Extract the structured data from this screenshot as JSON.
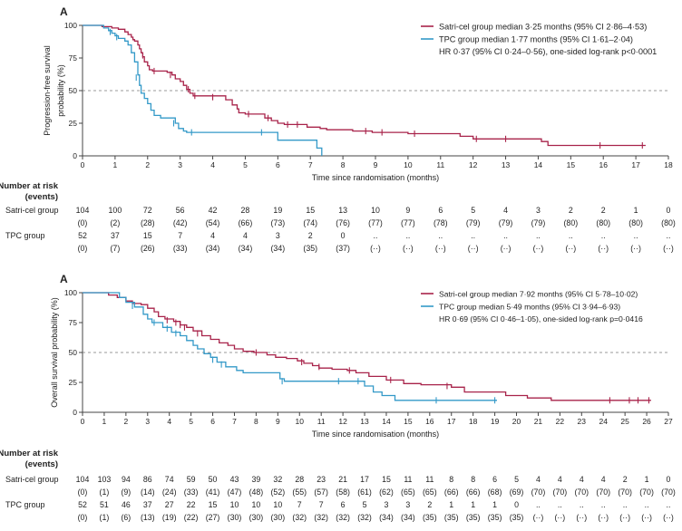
{
  "chart_data": [
    {
      "type": "line",
      "subtype": "kaplan-meier",
      "panel_label": "A",
      "ylabel": "Progression-free survival probability (%)",
      "ylabel_lines": [
        "Progression-free survival",
        "probability (%)"
      ],
      "xlabel": "Time since randomisation (months)",
      "xlim": [
        0,
        18
      ],
      "ylim": [
        0,
        100
      ],
      "x_ticks": [
        0,
        1,
        2,
        3,
        4,
        5,
        6,
        7,
        8,
        9,
        10,
        11,
        12,
        13,
        14,
        15,
        16,
        17,
        18
      ],
      "y_ticks": [
        0,
        25,
        50,
        75,
        100
      ],
      "reference_line": 50,
      "annotation": "HR 0·37 (95% CI 0·24–0·56), one-sided log-rank p<0·0001",
      "legend_position": "top-right",
      "series": [
        {
          "name": "Satri-cel group median 3·25 months (95% CI 2·86–4·53)",
          "color": "#a8234a",
          "steps": [
            [
              0,
              100
            ],
            [
              0.6,
              99
            ],
            [
              0.9,
              98
            ],
            [
              1.1,
              97
            ],
            [
              1.3,
              95
            ],
            [
              1.4,
              93
            ],
            [
              1.5,
              91
            ],
            [
              1.55,
              89
            ],
            [
              1.6,
              88
            ],
            [
              1.7,
              85
            ],
            [
              1.75,
              82
            ],
            [
              1.8,
              79
            ],
            [
              1.85,
              76
            ],
            [
              1.9,
              72
            ],
            [
              2.0,
              69
            ],
            [
              2.05,
              66
            ],
            [
              2.15,
              65
            ],
            [
              2.6,
              64
            ],
            [
              2.75,
              62
            ],
            [
              2.85,
              59
            ],
            [
              3.0,
              57
            ],
            [
              3.1,
              54
            ],
            [
              3.2,
              51
            ],
            [
              3.3,
              48
            ],
            [
              3.4,
              46
            ],
            [
              4.4,
              43
            ],
            [
              4.6,
              39
            ],
            [
              4.75,
              36
            ],
            [
              4.8,
              33
            ],
            [
              5.0,
              32
            ],
            [
              5.6,
              29
            ],
            [
              5.8,
              27
            ],
            [
              6.0,
              25
            ],
            [
              6.2,
              24
            ],
            [
              6.9,
              22
            ],
            [
              7.3,
              21
            ],
            [
              7.5,
              20
            ],
            [
              8.3,
              19
            ],
            [
              8.9,
              18
            ],
            [
              10.0,
              17
            ],
            [
              11.6,
              15
            ],
            [
              12.0,
              13
            ],
            [
              14.1,
              11
            ],
            [
              14.3,
              8
            ],
            [
              17.3,
              8
            ]
          ],
          "censored": [
            [
              1.85,
              77
            ],
            [
              2.2,
              65
            ],
            [
              2.7,
              62
            ],
            [
              3.25,
              51
            ],
            [
              3.45,
              46
            ],
            [
              4.0,
              45
            ],
            [
              5.1,
              32
            ],
            [
              5.7,
              29
            ],
            [
              6.3,
              24
            ],
            [
              6.6,
              24
            ],
            [
              8.7,
              19
            ],
            [
              9.2,
              18
            ],
            [
              10.2,
              17
            ],
            [
              12.1,
              13
            ],
            [
              13.0,
              13
            ],
            [
              15.9,
              8
            ],
            [
              17.2,
              8
            ]
          ],
          "at_risk": [
            "104",
            "100",
            "72",
            "56",
            "42",
            "28",
            "19",
            "15",
            "13",
            "10",
            "9",
            "6",
            "5",
            "4",
            "3",
            "2",
            "2",
            "1",
            "0"
          ],
          "events": [
            "(0)",
            "(2)",
            "(28)",
            "(42)",
            "(54)",
            "(66)",
            "(73)",
            "(74)",
            "(76)",
            "(77)",
            "(77)",
            "(78)",
            "(79)",
            "(79)",
            "(79)",
            "(80)",
            "(80)",
            "(80)",
            "(80)"
          ]
        },
        {
          "name": "TPC group median 1·77 months (95% CI 1·61–2·04)",
          "color": "#3399c8",
          "steps": [
            [
              0,
              100
            ],
            [
              0.65,
              98
            ],
            [
              0.8,
              96
            ],
            [
              0.9,
              94
            ],
            [
              1.0,
              92
            ],
            [
              1.1,
              90
            ],
            [
              1.3,
              88
            ],
            [
              1.4,
              85
            ],
            [
              1.5,
              79
            ],
            [
              1.6,
              72
            ],
            [
              1.7,
              62
            ],
            [
              1.75,
              54
            ],
            [
              1.8,
              48
            ],
            [
              1.9,
              44
            ],
            [
              2.0,
              40
            ],
            [
              2.1,
              35
            ],
            [
              2.2,
              31
            ],
            [
              2.4,
              29
            ],
            [
              2.85,
              25
            ],
            [
              2.95,
              21
            ],
            [
              3.1,
              19
            ],
            [
              3.2,
              18
            ],
            [
              5.6,
              18
            ],
            [
              6.0,
              12
            ],
            [
              7.2,
              6
            ],
            [
              7.35,
              0
            ]
          ],
          "censored": [
            [
              0.85,
              95
            ],
            [
              1.05,
              91
            ],
            [
              1.65,
              60
            ],
            [
              2.8,
              25
            ],
            [
              3.35,
              18
            ],
            [
              5.5,
              18
            ]
          ],
          "at_risk": [
            "52",
            "37",
            "15",
            "7",
            "4",
            "4",
            "3",
            "2",
            "0",
            "..",
            "..",
            "..",
            "..",
            "..",
            "..",
            "..",
            "..",
            "..",
            ".."
          ],
          "events": [
            "(0)",
            "(7)",
            "(26)",
            "(33)",
            "(34)",
            "(34)",
            "(34)",
            "(35)",
            "(37)",
            "(··)",
            "(··)",
            "(··)",
            "(··)",
            "(··)",
            "(··)",
            "(··)",
            "(··)",
            "(··)",
            "(··)"
          ]
        }
      ],
      "risk_table": {
        "title_line1": "Number at risk",
        "title_line2": "(events)",
        "row_labels": [
          "Satri-cel group",
          "TPC group"
        ]
      }
    },
    {
      "type": "line",
      "subtype": "kaplan-meier",
      "panel_label": "A",
      "ylabel": "Overall survival probability (%)",
      "ylabel_lines": [
        "Overall survival probability (%)"
      ],
      "xlabel": "Time since randomisation (months)",
      "xlim": [
        0,
        27
      ],
      "ylim": [
        0,
        100
      ],
      "x_ticks": [
        0,
        1,
        2,
        3,
        4,
        5,
        6,
        7,
        8,
        9,
        10,
        11,
        12,
        13,
        14,
        15,
        16,
        17,
        18,
        19,
        20,
        21,
        22,
        23,
        24,
        25,
        26,
        27
      ],
      "y_ticks": [
        0,
        25,
        50,
        75,
        100
      ],
      "reference_line": 50,
      "annotation": "HR 0·69 (95% CI 0·46–1·05), one-sided log-rank p=0·0416",
      "legend_position": "top-right",
      "series": [
        {
          "name": "Satri-cel group median 7·92 months (95% CI 5·78–10·02)",
          "color": "#a8234a",
          "steps": [
            [
              0,
              100
            ],
            [
              1.2,
              98
            ],
            [
              1.6,
              96
            ],
            [
              2.0,
              93
            ],
            [
              2.3,
              91
            ],
            [
              2.7,
              90
            ],
            [
              3.0,
              87
            ],
            [
              3.3,
              84
            ],
            [
              3.5,
              80
            ],
            [
              3.8,
              78
            ],
            [
              4.2,
              76
            ],
            [
              4.5,
              73
            ],
            [
              4.8,
              71
            ],
            [
              5.1,
              68
            ],
            [
              5.5,
              64
            ],
            [
              5.9,
              61
            ],
            [
              6.3,
              58
            ],
            [
              6.7,
              56
            ],
            [
              7.0,
              53
            ],
            [
              7.4,
              51
            ],
            [
              7.9,
              50
            ],
            [
              8.5,
              48
            ],
            [
              8.9,
              46
            ],
            [
              9.4,
              45
            ],
            [
              9.9,
              43
            ],
            [
              10.2,
              41
            ],
            [
              10.6,
              39
            ],
            [
              10.9,
              37
            ],
            [
              11.5,
              36
            ],
            [
              12.2,
              35
            ],
            [
              12.6,
              33
            ],
            [
              13.2,
              30
            ],
            [
              14.0,
              27
            ],
            [
              14.8,
              24
            ],
            [
              15.6,
              23
            ],
            [
              17.0,
              21
            ],
            [
              17.6,
              17
            ],
            [
              19.5,
              14
            ],
            [
              20.5,
              12
            ],
            [
              21.6,
              10
            ],
            [
              26.2,
              10
            ]
          ],
          "censored": [
            [
              3.9,
              77
            ],
            [
              4.3,
              75
            ],
            [
              4.5,
              73
            ],
            [
              4.7,
              71
            ],
            [
              5.3,
              66
            ],
            [
              8.0,
              50
            ],
            [
              10.1,
              42
            ],
            [
              10.9,
              38
            ],
            [
              12.3,
              35
            ],
            [
              14.2,
              27
            ],
            [
              16.8,
              22
            ],
            [
              24.3,
              10
            ],
            [
              25.2,
              10
            ],
            [
              25.6,
              10
            ],
            [
              26.1,
              10
            ]
          ],
          "at_risk": [
            "104",
            "103",
            "94",
            "86",
            "74",
            "59",
            "50",
            "43",
            "39",
            "32",
            "28",
            "23",
            "21",
            "17",
            "15",
            "11",
            "11",
            "8",
            "8",
            "6",
            "5",
            "4",
            "4",
            "4",
            "4",
            "2",
            "1",
            "0"
          ],
          "events": [
            "(0)",
            "(1)",
            "(9)",
            "(14)",
            "(24)",
            "(33)",
            "(41)",
            "(47)",
            "(48)",
            "(52)",
            "(55)",
            "(57)",
            "(58)",
            "(61)",
            "(62)",
            "(65)",
            "(65)",
            "(66)",
            "(66)",
            "(68)",
            "(69)",
            "(70)",
            "(70)",
            "(70)",
            "(70)",
            "(70)",
            "(70)",
            "(70)"
          ]
        },
        {
          "name": "TPC group median 5·49 months (95% CI 3·94–6·93)",
          "color": "#3399c8",
          "steps": [
            [
              0,
              100
            ],
            [
              1.7,
              96
            ],
            [
              2.0,
              92
            ],
            [
              2.4,
              88
            ],
            [
              2.8,
              82
            ],
            [
              3.0,
              78
            ],
            [
              3.2,
              75
            ],
            [
              3.7,
              71
            ],
            [
              4.1,
              67
            ],
            [
              4.5,
              64
            ],
            [
              4.8,
              60
            ],
            [
              5.1,
              56
            ],
            [
              5.3,
              53
            ],
            [
              5.6,
              49
            ],
            [
              5.9,
              46
            ],
            [
              6.2,
              42
            ],
            [
              6.6,
              38
            ],
            [
              7.1,
              35
            ],
            [
              7.4,
              33
            ],
            [
              9.1,
              28
            ],
            [
              9.3,
              26
            ],
            [
              13.0,
              22
            ],
            [
              13.4,
              17
            ],
            [
              13.8,
              14
            ],
            [
              14.4,
              10
            ],
            [
              19.1,
              10
            ]
          ],
          "censored": [
            [
              2.3,
              89
            ],
            [
              3.3,
              75
            ],
            [
              3.9,
              70
            ],
            [
              4.3,
              66
            ],
            [
              6.0,
              44
            ],
            [
              6.4,
              40
            ],
            [
              9.2,
              26
            ],
            [
              11.8,
              26
            ],
            [
              12.7,
              26
            ],
            [
              16.3,
              10
            ],
            [
              19.0,
              10
            ]
          ],
          "at_risk": [
            "52",
            "51",
            "46",
            "37",
            "27",
            "22",
            "15",
            "10",
            "10",
            "10",
            "7",
            "7",
            "6",
            "5",
            "3",
            "3",
            "2",
            "1",
            "1",
            "1",
            "0",
            "..",
            "..",
            "..",
            "..",
            "..",
            "..",
            ".."
          ],
          "events": [
            "(0)",
            "(1)",
            "(6)",
            "(13)",
            "(19)",
            "(22)",
            "(27)",
            "(30)",
            "(30)",
            "(30)",
            "(32)",
            "(32)",
            "(32)",
            "(32)",
            "(34)",
            "(34)",
            "(35)",
            "(35)",
            "(35)",
            "(35)",
            "(35)",
            "(··)",
            "(··)",
            "(··)",
            "(··)",
            "(··)",
            "(··)",
            "(··)"
          ]
        }
      ],
      "risk_table": {
        "title_line1": "Number at risk",
        "title_line2": "(events)",
        "row_labels": [
          "Satri-cel group",
          "TPC group"
        ]
      }
    }
  ]
}
